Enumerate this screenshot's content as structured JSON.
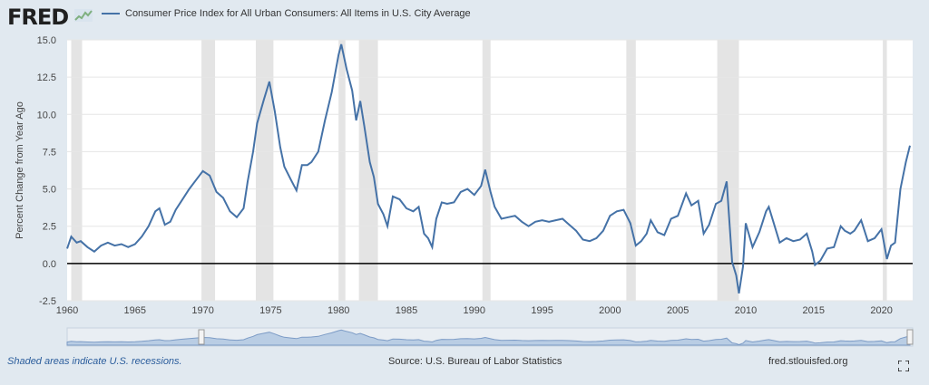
{
  "header": {
    "logo_text": "FRED",
    "logo_icon": "fred-chart-icon",
    "series_label": "Consumer Price Index for All Urban Consumers: All Items in U.S. City Average"
  },
  "footer": {
    "recession_note": "Shaded areas indicate U.S. recessions.",
    "source": "Source: U.S. Bureau of Labor Statistics",
    "site": "fred.stlouisfed.org",
    "fullscreen_icon": "fullscreen-icon"
  },
  "colors": {
    "line": "#4572a7",
    "recession": "#e4e4e4",
    "plot_bg": "#ffffff",
    "page_bg": "#e1e9f0"
  },
  "chart_data": {
    "type": "line",
    "title": "",
    "xlabel": "",
    "ylabel": "Percent Change from Year Ago",
    "xlim": [
      1960,
      2022.3
    ],
    "ylim": [
      -2.5,
      15.0
    ],
    "x_ticks": [
      "1960",
      "1965",
      "1970",
      "1975",
      "1980",
      "1985",
      "1990",
      "1995",
      "2000",
      "2005",
      "2010",
      "2015",
      "2020"
    ],
    "y_ticks": [
      "-2.5",
      "0.0",
      "2.5",
      "5.0",
      "7.5",
      "10.0",
      "12.5",
      "15.0"
    ],
    "recessions": [
      [
        1960.3,
        1961.1
      ],
      [
        1969.9,
        1970.9
      ],
      [
        1973.9,
        1975.2
      ],
      [
        1980.0,
        1980.5
      ],
      [
        1981.5,
        1982.9
      ],
      [
        1990.6,
        1991.2
      ],
      [
        2001.2,
        2001.9
      ],
      [
        2007.9,
        2009.5
      ],
      [
        2020.1,
        2020.4
      ]
    ],
    "series": [
      {
        "name": "Consumer Price Index for All Urban Consumers: All Items in U.S. City Average",
        "points": [
          [
            1960.0,
            1.0
          ],
          [
            1960.3,
            1.8
          ],
          [
            1960.7,
            1.4
          ],
          [
            1961.0,
            1.5
          ],
          [
            1961.5,
            1.1
          ],
          [
            1962.0,
            0.8
          ],
          [
            1962.5,
            1.2
          ],
          [
            1963.0,
            1.4
          ],
          [
            1963.5,
            1.2
          ],
          [
            1964.0,
            1.3
          ],
          [
            1964.5,
            1.1
          ],
          [
            1965.0,
            1.3
          ],
          [
            1965.5,
            1.8
          ],
          [
            1966.0,
            2.5
          ],
          [
            1966.5,
            3.5
          ],
          [
            1966.8,
            3.7
          ],
          [
            1967.2,
            2.6
          ],
          [
            1967.6,
            2.8
          ],
          [
            1968.0,
            3.6
          ],
          [
            1968.5,
            4.3
          ],
          [
            1969.0,
            5.0
          ],
          [
            1969.5,
            5.6
          ],
          [
            1970.0,
            6.2
          ],
          [
            1970.5,
            5.9
          ],
          [
            1971.0,
            4.8
          ],
          [
            1971.5,
            4.4
          ],
          [
            1972.0,
            3.5
          ],
          [
            1972.5,
            3.1
          ],
          [
            1973.0,
            3.7
          ],
          [
            1973.3,
            5.5
          ],
          [
            1973.7,
            7.5
          ],
          [
            1974.0,
            9.4
          ],
          [
            1974.5,
            11.0
          ],
          [
            1974.9,
            12.2
          ],
          [
            1975.3,
            10.2
          ],
          [
            1975.7,
            7.8
          ],
          [
            1976.0,
            6.5
          ],
          [
            1976.5,
            5.6
          ],
          [
            1976.9,
            4.9
          ],
          [
            1977.3,
            6.6
          ],
          [
            1977.7,
            6.6
          ],
          [
            1978.0,
            6.8
          ],
          [
            1978.5,
            7.5
          ],
          [
            1979.0,
            9.6
          ],
          [
            1979.5,
            11.5
          ],
          [
            1980.0,
            14.0
          ],
          [
            1980.2,
            14.7
          ],
          [
            1980.6,
            13.0
          ],
          [
            1981.0,
            11.6
          ],
          [
            1981.3,
            9.6
          ],
          [
            1981.6,
            10.9
          ],
          [
            1981.9,
            9.2
          ],
          [
            1982.3,
            6.8
          ],
          [
            1982.6,
            5.8
          ],
          [
            1982.9,
            4.0
          ],
          [
            1983.3,
            3.3
          ],
          [
            1983.6,
            2.5
          ],
          [
            1984.0,
            4.5
          ],
          [
            1984.5,
            4.3
          ],
          [
            1985.0,
            3.7
          ],
          [
            1985.5,
            3.5
          ],
          [
            1985.9,
            3.8
          ],
          [
            1986.3,
            2.0
          ],
          [
            1986.6,
            1.7
          ],
          [
            1986.9,
            1.1
          ],
          [
            1987.2,
            3.0
          ],
          [
            1987.6,
            4.1
          ],
          [
            1988.0,
            4.0
          ],
          [
            1988.5,
            4.1
          ],
          [
            1989.0,
            4.8
          ],
          [
            1989.5,
            5.0
          ],
          [
            1990.0,
            4.6
          ],
          [
            1990.5,
            5.2
          ],
          [
            1990.8,
            6.3
          ],
          [
            1991.2,
            4.8
          ],
          [
            1991.5,
            3.8
          ],
          [
            1992.0,
            3.0
          ],
          [
            1992.5,
            3.1
          ],
          [
            1993.0,
            3.2
          ],
          [
            1993.5,
            2.8
          ],
          [
            1994.0,
            2.5
          ],
          [
            1994.5,
            2.8
          ],
          [
            1995.0,
            2.9
          ],
          [
            1995.5,
            2.8
          ],
          [
            1996.0,
            2.9
          ],
          [
            1996.5,
            3.0
          ],
          [
            1997.0,
            2.6
          ],
          [
            1997.5,
            2.2
          ],
          [
            1998.0,
            1.6
          ],
          [
            1998.5,
            1.5
          ],
          [
            1999.0,
            1.7
          ],
          [
            1999.5,
            2.2
          ],
          [
            2000.0,
            3.2
          ],
          [
            2000.5,
            3.5
          ],
          [
            2001.0,
            3.6
          ],
          [
            2001.5,
            2.7
          ],
          [
            2001.9,
            1.2
          ],
          [
            2002.3,
            1.5
          ],
          [
            2002.7,
            2.0
          ],
          [
            2003.0,
            2.9
          ],
          [
            2003.5,
            2.1
          ],
          [
            2004.0,
            1.9
          ],
          [
            2004.5,
            3.0
          ],
          [
            2005.0,
            3.2
          ],
          [
            2005.6,
            4.7
          ],
          [
            2006.0,
            3.9
          ],
          [
            2006.5,
            4.2
          ],
          [
            2006.9,
            2.0
          ],
          [
            2007.3,
            2.6
          ],
          [
            2007.8,
            4.0
          ],
          [
            2008.2,
            4.2
          ],
          [
            2008.6,
            5.5
          ],
          [
            2009.0,
            0.1
          ],
          [
            2009.3,
            -0.8
          ],
          [
            2009.5,
            -2.0
          ],
          [
            2009.8,
            -0.2
          ],
          [
            2010.0,
            2.7
          ],
          [
            2010.5,
            1.1
          ],
          [
            2011.0,
            2.1
          ],
          [
            2011.5,
            3.5
          ],
          [
            2011.7,
            3.8
          ],
          [
            2012.0,
            2.9
          ],
          [
            2012.5,
            1.4
          ],
          [
            2013.0,
            1.7
          ],
          [
            2013.5,
            1.5
          ],
          [
            2014.0,
            1.6
          ],
          [
            2014.5,
            2.0
          ],
          [
            2014.9,
            0.8
          ],
          [
            2015.1,
            -0.1
          ],
          [
            2015.5,
            0.2
          ],
          [
            2016.0,
            1.0
          ],
          [
            2016.5,
            1.1
          ],
          [
            2017.0,
            2.5
          ],
          [
            2017.3,
            2.2
          ],
          [
            2017.7,
            2.0
          ],
          [
            2018.0,
            2.2
          ],
          [
            2018.5,
            2.9
          ],
          [
            2019.0,
            1.5
          ],
          [
            2019.5,
            1.7
          ],
          [
            2020.0,
            2.3
          ],
          [
            2020.4,
            0.3
          ],
          [
            2020.7,
            1.2
          ],
          [
            2021.0,
            1.4
          ],
          [
            2021.4,
            5.0
          ],
          [
            2021.8,
            6.8
          ],
          [
            2022.1,
            7.9
          ]
        ]
      }
    ]
  }
}
